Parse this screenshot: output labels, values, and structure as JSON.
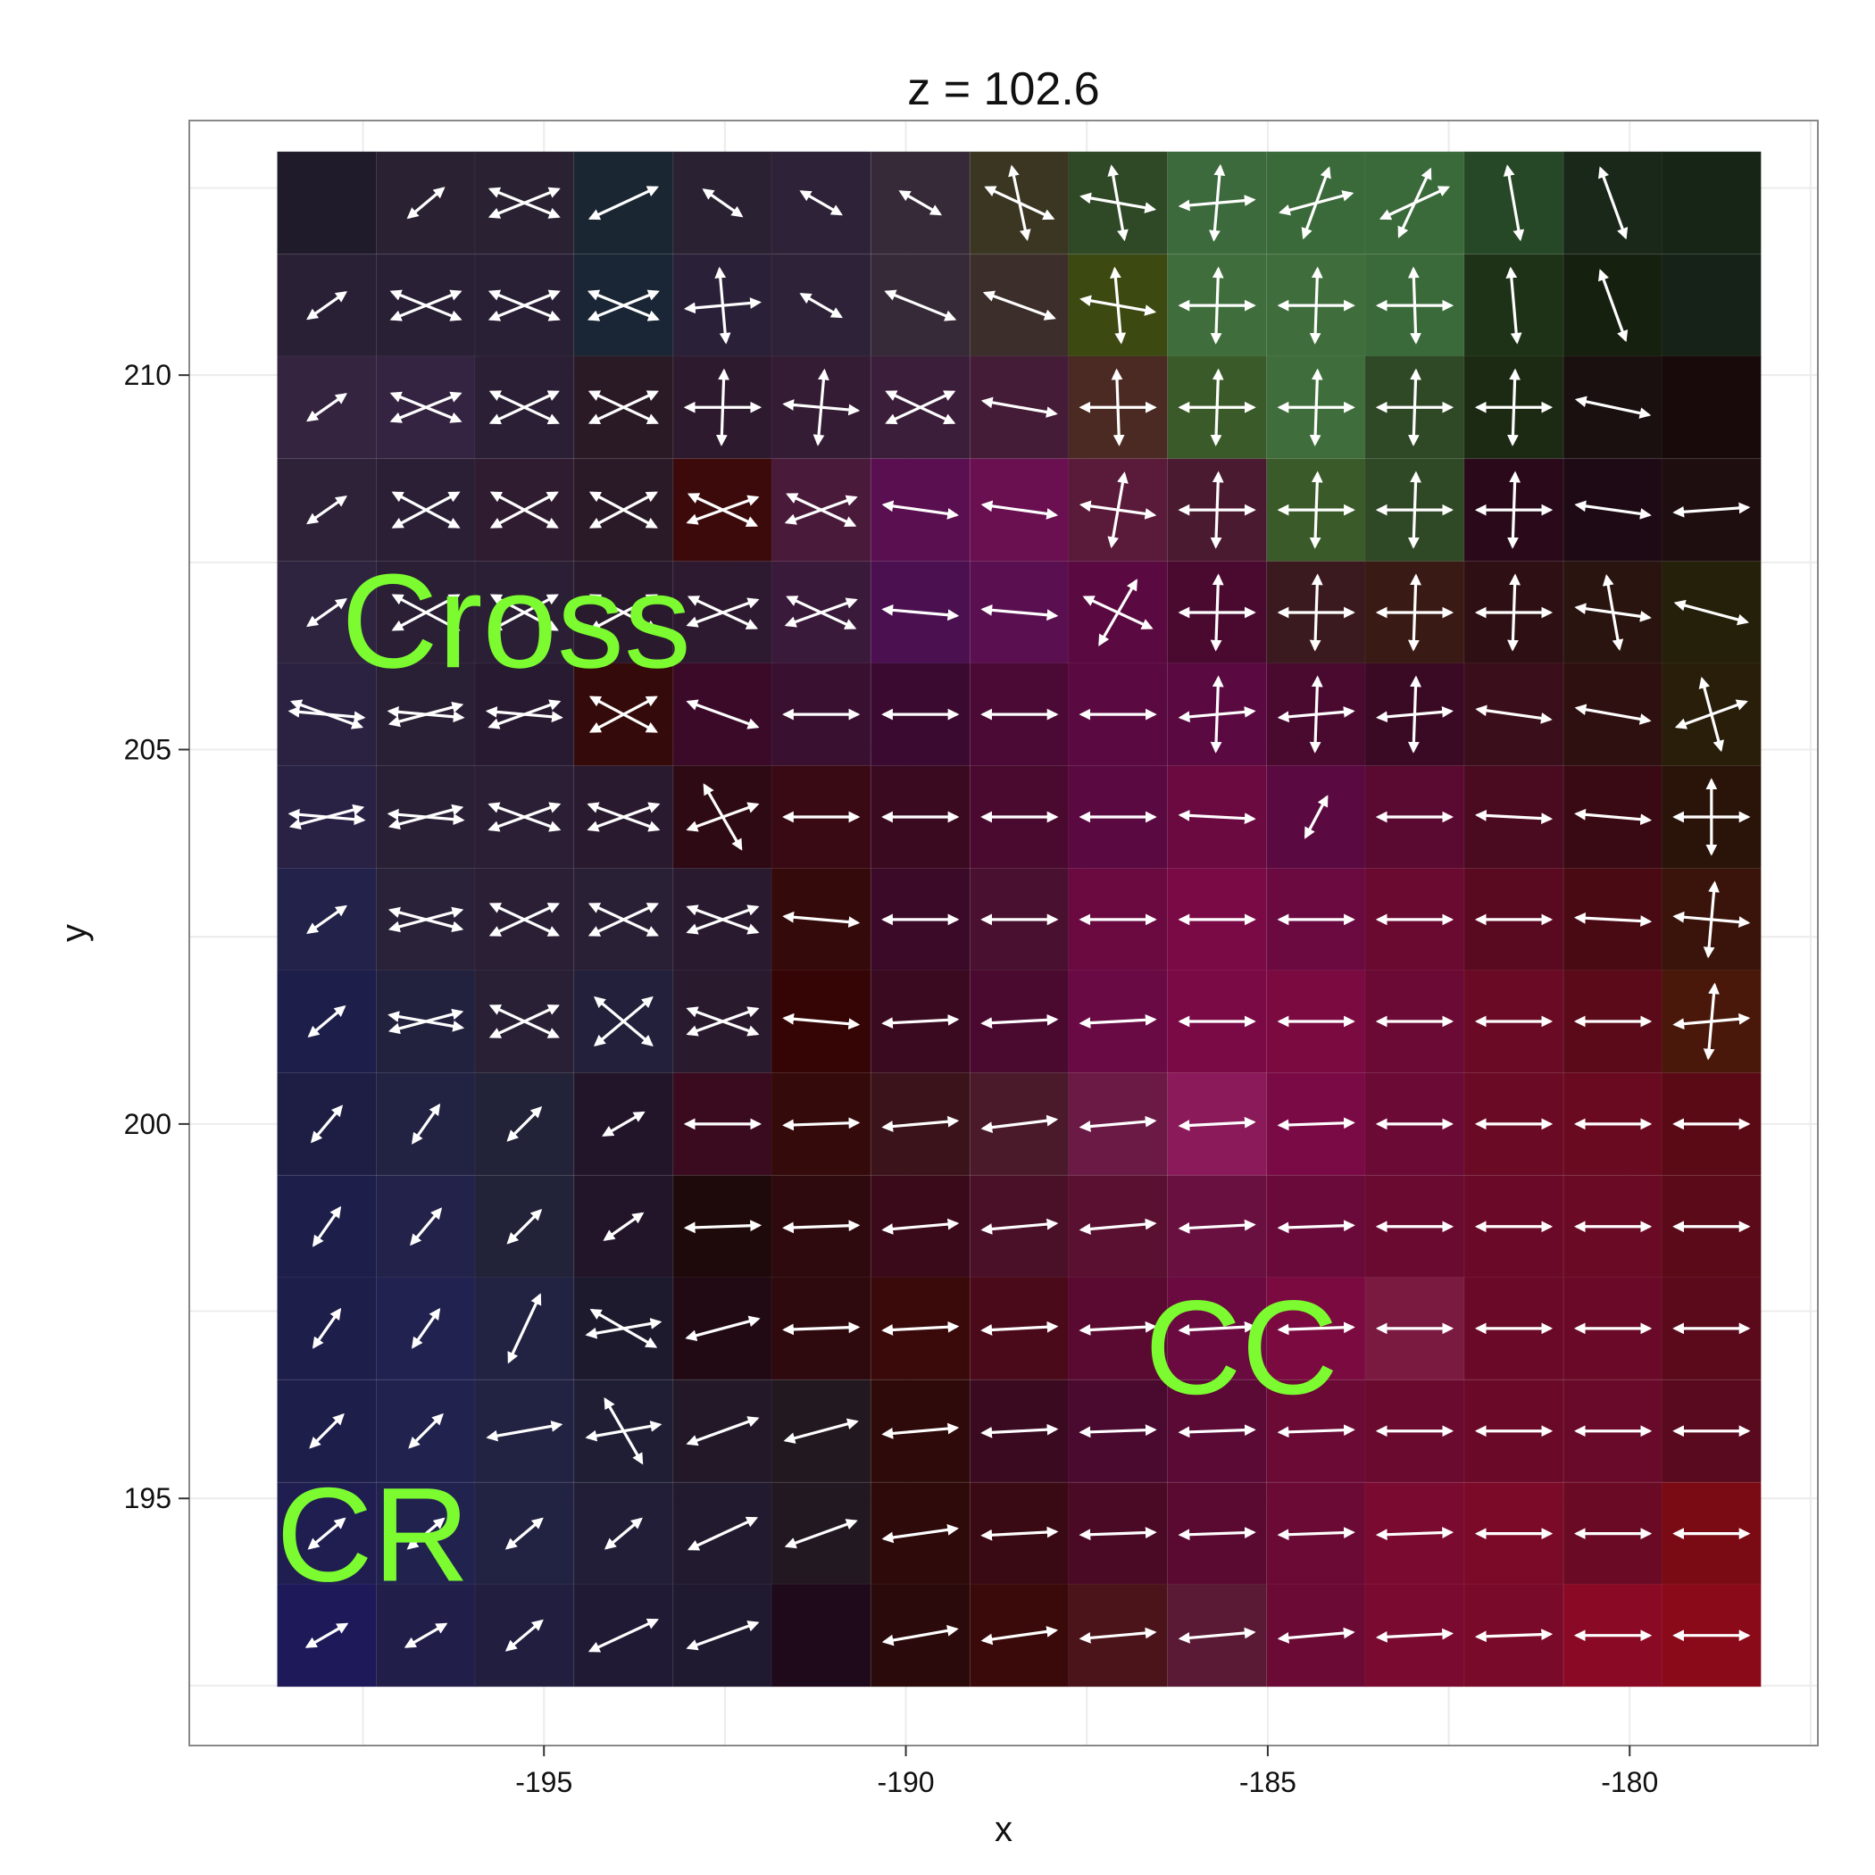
{
  "chart_data": {
    "type": "heatmap",
    "title": "z = 102.6",
    "xlabel": "x",
    "ylabel": "y",
    "xlim": [
      -199.9,
      -177.4
    ],
    "ylim": [
      191.7,
      213.4
    ],
    "x_ticks": [
      -195,
      -190,
      -185,
      -180
    ],
    "y_ticks": [
      195,
      200,
      205,
      210
    ],
    "x_tick_labels": [
      "-195",
      "-190",
      "-185",
      "-180"
    ],
    "y_tick_labels": [
      "195",
      "200",
      "205",
      "210"
    ],
    "grid": true,
    "x_centers": [
      -198.0,
      -196.63,
      -195.27,
      -193.9,
      -192.53,
      -191.17,
      -189.8,
      -188.43,
      -187.07,
      -185.7,
      -184.33,
      -182.97,
      -181.6,
      -180.23,
      -178.87
    ],
    "y_centers": [
      212.3,
      210.93,
      209.57,
      208.2,
      206.83,
      205.47,
      204.1,
      202.73,
      201.37,
      200.0,
      198.63,
      197.27,
      195.9,
      194.53,
      193.17
    ],
    "cell_colors": [
      [
        "#201b2a",
        "#2a2232",
        "#2a2232",
        "#1a2632",
        "#2a2232",
        "#2e2238",
        "#372a38",
        "#3a3622",
        "#2f4826",
        "#3c6a3c",
        "#3a6a3a",
        "#3a6a3a",
        "#264826",
        "#1a281a",
        "#172517"
      ],
      [
        "#2a2035",
        "#2a2035",
        "#2a2035",
        "#1a2635",
        "#2a2038",
        "#2e2238",
        "#372a38",
        "#3c2e2a",
        "#3c4a12",
        "#3f6e3c",
        "#3f6e3c",
        "#3a6a3a",
        "#1e3218",
        "#15200f",
        "#162217"
      ],
      [
        "#342440",
        "#342442",
        "#2a1f35",
        "#2a1a25",
        "#2e1a2e",
        "#341c34",
        "#3a1e3a",
        "#451c38",
        "#4a2a22",
        "#3a5a2a",
        "#3f6e3c",
        "#2f4826",
        "#1c2a14",
        "#1a1010",
        "#180a0a"
      ],
      [
        "#2e2238",
        "#2a1f35",
        "#301c30",
        "#2a1a28",
        "#3c0a0a",
        "#4a1a3a",
        "#5a1050",
        "#6a1050",
        "#5a1a3a",
        "#4a1a30",
        "#3a5a2a",
        "#2f4826",
        "#2a0a1a",
        "#1e0a14",
        "#1e0e10"
      ],
      [
        "#2e2440",
        "#2a1f35",
        "#2a1f35",
        "#2a1a2e",
        "#2e1a30",
        "#3a1a3a",
        "#4a1050",
        "#5a1050",
        "#5a0a40",
        "#4a0a30",
        "#3a1a1e",
        "#3a1a14",
        "#2e1014",
        "#2a1410",
        "#24200a"
      ],
      [
        "#2a2240",
        "#2a2035",
        "#281a30",
        "#350a0a",
        "#3a0a28",
        "#3a1030",
        "#3a0a30",
        "#4a0a35",
        "#5a0a40",
        "#5a0a40",
        "#4a0a30",
        "#3a0a25",
        "#3a0e1a",
        "#2e1010",
        "#281e0a"
      ],
      [
        "#2a2245",
        "#2a2035",
        "#2a1f35",
        "#2a1a30",
        "#2e0a14",
        "#3a0a14",
        "#3a0a20",
        "#4a0a30",
        "#5a0a40",
        "#6a0a40",
        "#5a0a40",
        "#5a0a30",
        "#4a0a20",
        "#3a0a14",
        "#2a140a"
      ],
      [
        "#22224a",
        "#2a2238",
        "#2a1f35",
        "#2a2035",
        "#2a1a30",
        "#350a0a",
        "#3a0a28",
        "#4a1030",
        "#6a0a40",
        "#7a0a45",
        "#6a0a40",
        "#6a0a30",
        "#5a0a20",
        "#4a0a14",
        "#3a140a"
      ],
      [
        "#1e1e4a",
        "#22223f",
        "#2a2035",
        "#22203a",
        "#2a1a2e",
        "#350505",
        "#3a0a20",
        "#4a0a30",
        "#6a0a45",
        "#7a0a45",
        "#7a0a40",
        "#6a0a35",
        "#6a0a25",
        "#5a0a18",
        "#4a180a"
      ],
      [
        "#1e1e45",
        "#222242",
        "#222238",
        "#22152a",
        "#3a0a1e",
        "#350a0a",
        "#3a141a",
        "#4a1a2a",
        "#6a1a45",
        "#8a1a5a",
        "#7a0a45",
        "#6a0a35",
        "#6a0a25",
        "#6a0a20",
        "#5a0a14"
      ],
      [
        "#1e1e4a",
        "#22224a",
        "#222238",
        "#22152a",
        "#1e0a0a",
        "#2e0a0e",
        "#3a0a1a",
        "#4a1028",
        "#5a1030",
        "#6a1040",
        "#6a0a3a",
        "#6a0a30",
        "#6a0a28",
        "#6a0a25",
        "#5a0a18"
      ],
      [
        "#1e1e4a",
        "#222250",
        "#222242",
        "#1e1a2e",
        "#220a14",
        "#2e0a0e",
        "#3a0a0a",
        "#4a0a1a",
        "#5a0a30",
        "#6a0a40",
        "#7a0a40",
        "#7a1a40",
        "#6a0a28",
        "#6a0a28",
        "#5a0a1a"
      ],
      [
        "#1e1e4a",
        "#22224f",
        "#222242",
        "#201e35",
        "#221828",
        "#221820",
        "#2e0a0a",
        "#3a0a20",
        "#4a0a30",
        "#5a0a35",
        "#6a0a35",
        "#6a0a2e",
        "#6a0a28",
        "#6a0a2a",
        "#5a0a1e"
      ],
      [
        "#201e50",
        "#22224f",
        "#222242",
        "#221e38",
        "#221a2e",
        "#221822",
        "#2e0a0a",
        "#3a0a14",
        "#4a0a25",
        "#5a0a30",
        "#6a0a35",
        "#7a0a30",
        "#7a0a28",
        "#6a0a25",
        "#7a0a14"
      ],
      [
        "#1e1a5a",
        "#221e4a",
        "#221e40",
        "#201a35",
        "#201a30",
        "#1e0a1a",
        "#2a0a0a",
        "#3a0a0a",
        "#4a141a",
        "#5a1a35",
        "#6a0a35",
        "#7a0a30",
        "#7a0a2a",
        "#8a0a25",
        "#8a0a1a"
      ]
    ],
    "glyphs": [
      [
        null,
        [
          40
        ],
        [
          22,
          -22
        ],
        [
          25
        ],
        [
          -35
        ],
        [
          -30
        ],
        [
          -30
        ],
        [
          -78,
          -25
        ],
        [
          -80,
          -10
        ],
        [
          85,
          5
        ],
        [
          70,
          15
        ],
        [
          65,
          25
        ],
        [
          -80
        ],
        [
          -70
        ],
        null
      ],
      [
        [
          35
        ],
        [
          22,
          -22
        ],
        [
          22,
          -22
        ],
        [
          22,
          -22
        ],
        [
          -85,
          5
        ],
        [
          -30
        ],
        [
          -22
        ],
        [
          -20
        ],
        [
          -85,
          -10
        ],
        [
          88,
          0
        ],
        [
          88,
          0
        ],
        [
          -88,
          0
        ],
        [
          -85
        ],
        [
          -70
        ],
        null
      ],
      [
        [
          35
        ],
        [
          22,
          -22
        ],
        [
          -25,
          25
        ],
        [
          -25,
          25
        ],
        [
          88,
          0
        ],
        [
          85,
          -5
        ],
        [
          -25,
          25
        ],
        [
          -10
        ],
        [
          -88,
          0
        ],
        [
          88,
          0
        ],
        [
          88,
          0
        ],
        [
          88,
          0
        ],
        [
          88,
          0
        ],
        [
          -12
        ],
        null
      ],
      [
        [
          35
        ],
        [
          -28,
          28
        ],
        [
          28,
          -28
        ],
        [
          28,
          -28
        ],
        [
          -25,
          20
        ],
        [
          -25,
          20
        ],
        [
          -8
        ],
        [
          -8
        ],
        [
          80,
          -8
        ],
        [
          88,
          0
        ],
        [
          88,
          0
        ],
        [
          88,
          0
        ],
        [
          88,
          0
        ],
        [
          -8
        ],
        [
          4
        ]
      ],
      [
        [
          35
        ],
        [
          -28,
          28
        ],
        [
          -28,
          28
        ],
        [
          28,
          -28
        ],
        [
          -25,
          20
        ],
        [
          -25,
          20
        ],
        [
          -5
        ],
        [
          -5
        ],
        [
          60,
          -25
        ],
        [
          88,
          0
        ],
        [
          88,
          0
        ],
        [
          88,
          0
        ],
        [
          88,
          0
        ],
        [
          -80,
          -8
        ],
        [
          -15
        ]
      ],
      [
        [
          -5,
          -20
        ],
        [
          15,
          -5
        ],
        [
          20,
          -5
        ],
        [
          28,
          -28
        ],
        [
          -20
        ],
        [
          0
        ],
        [
          0
        ],
        [
          0
        ],
        [
          0
        ],
        [
          88,
          5
        ],
        [
          88,
          5
        ],
        [
          88,
          5
        ],
        [
          -8
        ],
        [
          -10
        ],
        [
          -75,
          20
        ]
      ],
      [
        [
          -5,
          15
        ],
        [
          15,
          -5
        ],
        [
          -20,
          20
        ],
        [
          -20,
          20
        ],
        [
          20,
          -60
        ],
        [
          0
        ],
        [
          0
        ],
        [
          0
        ],
        [
          0
        ],
        [
          -3
        ],
        [
          62
        ],
        [
          0
        ],
        [
          -3
        ],
        [
          -5
        ],
        [
          90,
          0
        ]
      ],
      [
        [
          35
        ],
        [
          15,
          -15
        ],
        [
          -25,
          25
        ],
        [
          -25,
          25
        ],
        [
          -20,
          20
        ],
        [
          -5
        ],
        [
          0
        ],
        [
          0
        ],
        [
          0
        ],
        [
          0
        ],
        [
          0
        ],
        [
          0
        ],
        [
          0
        ],
        [
          -3
        ],
        [
          85,
          -5
        ]
      ],
      [
        [
          40
        ],
        [
          15,
          -10
        ],
        [
          -25,
          25
        ],
        [
          -40,
          40
        ],
        [
          -20,
          20
        ],
        [
          -5
        ],
        [
          3
        ],
        [
          3
        ],
        [
          3
        ],
        [
          0
        ],
        [
          0
        ],
        [
          0
        ],
        [
          0
        ],
        [
          0
        ],
        [
          85,
          5
        ]
      ],
      [
        [
          50
        ],
        [
          55
        ],
        [
          45
        ],
        [
          30
        ],
        [
          0
        ],
        [
          2
        ],
        [
          5
        ],
        [
          7
        ],
        [
          5
        ],
        [
          3
        ],
        [
          2
        ],
        [
          0
        ],
        [
          0
        ],
        [
          0
        ],
        [
          0
        ]
      ],
      [
        [
          55
        ],
        [
          50
        ],
        [
          45
        ],
        [
          35
        ],
        [
          2
        ],
        [
          2
        ],
        [
          5
        ],
        [
          5
        ],
        [
          5
        ],
        [
          3
        ],
        [
          2
        ],
        [
          0
        ],
        [
          0
        ],
        [
          0
        ],
        [
          0
        ]
      ],
      [
        [
          55
        ],
        [
          55
        ],
        [
          65
        ],
        [
          -30,
          10
        ],
        [
          15
        ],
        [
          2
        ],
        [
          3
        ],
        [
          3
        ],
        [
          3
        ],
        [
          3
        ],
        [
          2
        ],
        [
          0
        ],
        [
          0
        ],
        [
          0
        ],
        [
          0
        ]
      ],
      [
        [
          45
        ],
        [
          45
        ],
        [
          10
        ],
        [
          10,
          -60
        ],
        [
          20
        ],
        [
          15
        ],
        [
          5
        ],
        [
          3
        ],
        [
          2
        ],
        [
          2
        ],
        [
          2
        ],
        [
          0
        ],
        [
          0
        ],
        [
          0
        ],
        [
          0
        ]
      ],
      [
        [
          40
        ],
        [
          40
        ],
        [
          40
        ],
        [
          40
        ],
        [
          25
        ],
        [
          20
        ],
        [
          8
        ],
        [
          3
        ],
        [
          2
        ],
        [
          2
        ],
        [
          2
        ],
        [
          2
        ],
        [
          0
        ],
        [
          0
        ],
        [
          0
        ]
      ],
      [
        [
          30
        ],
        [
          30
        ],
        [
          40
        ],
        [
          25
        ],
        [
          20
        ],
        null,
        [
          10
        ],
        [
          8
        ],
        [
          5
        ],
        [
          5
        ],
        [
          5
        ],
        [
          3
        ],
        [
          2
        ],
        [
          0
        ],
        [
          0
        ]
      ]
    ],
    "annotations": [
      {
        "text": "Cross",
        "x": -197.8,
        "y": 206.1,
        "color": "#7cfc30"
      },
      {
        "text": "CC",
        "x": -186.7,
        "y": 196.4,
        "color": "#7cfc30"
      },
      {
        "text": "CR",
        "x": -198.7,
        "y": 193.9,
        "color": "#7cfc30"
      }
    ]
  },
  "colors": {
    "background": "#ffffff",
    "panel_border": "#888888",
    "grid": "#ececec",
    "glyph": "#ffffff",
    "annotation": "#7cfc30"
  }
}
